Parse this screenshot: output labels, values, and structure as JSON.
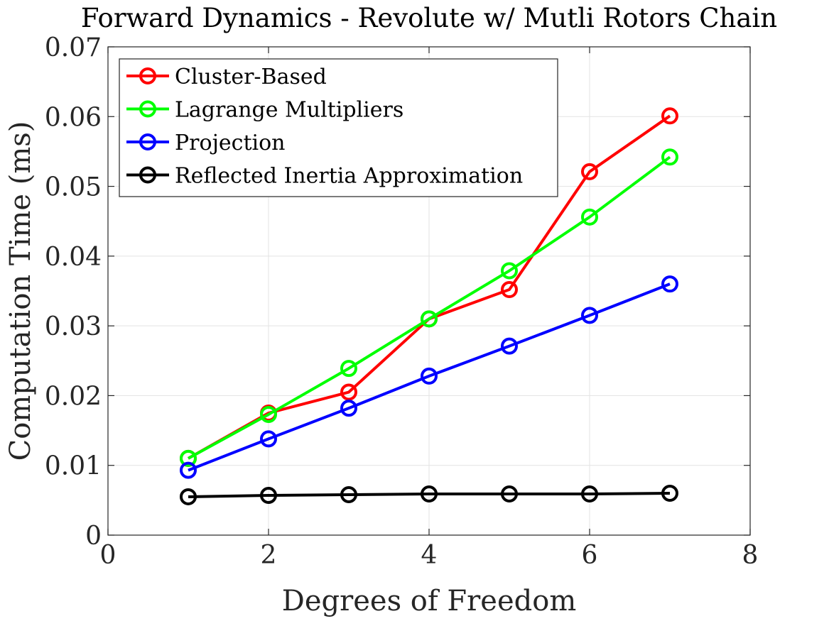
{
  "chart_data": {
    "type": "line",
    "title": "Forward Dynamics - Revolute w/ Mutli Rotors Chain",
    "xlabel": "Degrees of Freedom",
    "ylabel": "Computation Time (ms)",
    "xlim": [
      0,
      8
    ],
    "ylim": [
      0,
      0.07
    ],
    "x_ticks": [
      "0",
      "2",
      "4",
      "6",
      "8"
    ],
    "y_ticks": [
      "0",
      "0.01",
      "0.02",
      "0.03",
      "0.04",
      "0.05",
      "0.06",
      "0.07"
    ],
    "x_tick_values": [
      0,
      2,
      4,
      6,
      8
    ],
    "y_tick_values": [
      0,
      0.01,
      0.02,
      0.03,
      0.04,
      0.05,
      0.06,
      0.07
    ],
    "grid": true,
    "legend_position": "top-left",
    "x": [
      1,
      2,
      3,
      4,
      5,
      6,
      7
    ],
    "series": [
      {
        "name": "Cluster-Based",
        "color": "#ff0000",
        "marker": "circle",
        "values": [
          0.011,
          0.0175,
          0.0205,
          0.031,
          0.0352,
          0.0521,
          0.0601
        ]
      },
      {
        "name": "Lagrange Multipliers",
        "color": "#00ff00",
        "marker": "circle",
        "values": [
          0.011,
          0.0173,
          0.0239,
          0.031,
          0.0379,
          0.0456,
          0.0542
        ]
      },
      {
        "name": "Projection",
        "color": "#0000ff",
        "marker": "circle",
        "values": [
          0.0093,
          0.0138,
          0.0182,
          0.0228,
          0.0271,
          0.0315,
          0.036
        ]
      },
      {
        "name": "Reflected Inertia Approximation",
        "color": "#000000",
        "marker": "circle",
        "values": [
          0.0055,
          0.0057,
          0.0058,
          0.0059,
          0.0059,
          0.0059,
          0.006
        ]
      }
    ]
  }
}
